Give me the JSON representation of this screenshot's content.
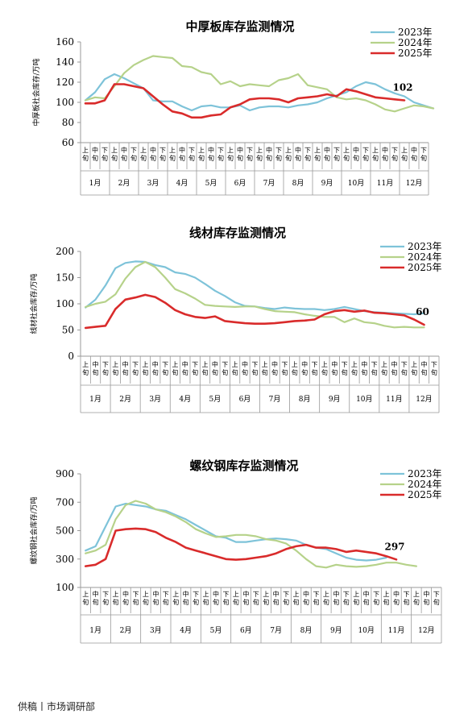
{
  "footer": "供稿丨市场调研部",
  "colors": {
    "s2023": "#7ec3d9",
    "s2024": "#b6d28a",
    "s2025": "#d92b2b",
    "axis": "#999999"
  },
  "chart_data": [
    {
      "type": "line",
      "title": "中厚板库存监测情况",
      "ylabel": "中厚板社会库存/万吨",
      "ylim": [
        60,
        160
      ],
      "yticks": [
        "160",
        "140",
        "120",
        "100",
        "80",
        "60"
      ],
      "sub_labels": [
        "上旬",
        "中旬",
        "下旬"
      ],
      "months": [
        "1月",
        "2月",
        "3月",
        "4月",
        "5月",
        "6月",
        "7月",
        "8月",
        "9月",
        "10月",
        "11月",
        "12月"
      ],
      "legend": [
        "2023年",
        "2024年",
        "2025年"
      ],
      "end_label": "102",
      "series": [
        {
          "name": "2023年",
          "values": [
            102,
            110,
            123,
            128,
            124,
            119,
            114,
            102,
            101,
            101,
            96,
            92,
            96,
            97,
            95,
            95,
            97,
            92,
            95,
            96,
            96,
            95,
            97,
            98,
            100,
            104,
            107,
            110,
            116,
            120,
            118,
            113,
            109,
            106,
            100,
            97,
            94
          ]
        },
        {
          "name": "2024年",
          "values": [
            102,
            105,
            104,
            116,
            129,
            137,
            142,
            146,
            145,
            144,
            136,
            135,
            130,
            128,
            118,
            121,
            116,
            118,
            117,
            116,
            122,
            124,
            128,
            117,
            115,
            113,
            105,
            103,
            104,
            102,
            98,
            93,
            91,
            94,
            97,
            96,
            94
          ]
        },
        {
          "name": "2025年",
          "values": [
            99,
            99,
            102,
            118,
            118,
            116,
            114,
            106,
            98,
            91,
            89,
            85,
            85,
            87,
            88,
            95,
            98,
            103,
            104,
            104,
            103,
            100,
            104,
            105,
            106,
            108,
            106,
            113,
            111,
            108,
            105,
            104,
            103,
            102
          ]
        }
      ]
    },
    {
      "type": "line",
      "title": "线材库存监测情况",
      "ylabel": "线材社会库存/万吨",
      "ylim": [
        0,
        200
      ],
      "yticks": [
        "200",
        "150",
        "100",
        "50",
        "0"
      ],
      "sub_labels": [
        "上旬",
        "中旬",
        "下旬"
      ],
      "months": [
        "1月",
        "2月",
        "3月",
        "4月",
        "5月",
        "6月",
        "7月",
        "8月",
        "9月",
        "10月",
        "11月",
        "12月"
      ],
      "legend": [
        "2023年",
        "2024年",
        "2025年"
      ],
      "end_label": "60",
      "series": [
        {
          "name": "2023年",
          "values": [
            93,
            108,
            135,
            168,
            178,
            181,
            180,
            174,
            170,
            160,
            157,
            150,
            138,
            125,
            115,
            103,
            96,
            95,
            92,
            90,
            93,
            91,
            90,
            90,
            88,
            90,
            94,
            90,
            86,
            84,
            83,
            82,
            81,
            80,
            82
          ]
        },
        {
          "name": "2024年",
          "values": [
            94,
            100,
            104,
            118,
            148,
            170,
            180,
            170,
            150,
            128,
            120,
            110,
            98,
            96,
            95,
            94,
            95,
            95,
            90,
            86,
            85,
            84,
            80,
            77,
            75,
            75,
            65,
            72,
            65,
            63,
            58,
            55,
            56,
            55,
            55
          ]
        },
        {
          "name": "2025年",
          "values": [
            54,
            56,
            58,
            90,
            108,
            112,
            117,
            113,
            102,
            88,
            80,
            75,
            73,
            76,
            67,
            65,
            63,
            62,
            62,
            63,
            65,
            67,
            68,
            70,
            80,
            86,
            88,
            85,
            87,
            83,
            82,
            80,
            78,
            70,
            60
          ]
        }
      ]
    },
    {
      "type": "line",
      "title": "螺纹钢库存监测情况",
      "ylabel": "螺纹钢社会库存/万吨",
      "ylim": [
        100,
        900
      ],
      "yticks": [
        "900",
        "700",
        "500",
        "300",
        "100"
      ],
      "sub_labels": [
        "上旬",
        "中旬",
        "下旬"
      ],
      "months": [
        "1月",
        "2月",
        "3月",
        "4月",
        "5月",
        "6月",
        "7月",
        "8月",
        "9月",
        "10月",
        "11月",
        "12月"
      ],
      "legend": [
        "2023年",
        "2024年",
        "2025年"
      ],
      "end_label": "297",
      "series": [
        {
          "name": "2023年",
          "values": [
            360,
            390,
            530,
            670,
            690,
            680,
            670,
            650,
            640,
            610,
            580,
            540,
            500,
            460,
            450,
            420,
            420,
            430,
            440,
            445,
            440,
            430,
            400,
            380,
            370,
            340,
            310,
            295,
            290,
            295,
            310
          ]
        },
        {
          "name": "2024年",
          "values": [
            340,
            360,
            400,
            580,
            680,
            710,
            690,
            650,
            630,
            600,
            560,
            510,
            480,
            455,
            460,
            470,
            470,
            460,
            440,
            430,
            410,
            360,
            300,
            250,
            240,
            260,
            250,
            245,
            250,
            260,
            275,
            275,
            260,
            250
          ]
        },
        {
          "name": "2025年",
          "values": [
            250,
            260,
            300,
            500,
            510,
            515,
            510,
            490,
            450,
            420,
            380,
            360,
            340,
            320,
            300,
            295,
            300,
            310,
            320,
            340,
            370,
            390,
            400,
            380,
            380,
            370,
            350,
            360,
            350,
            340,
            320,
            297
          ]
        }
      ]
    }
  ]
}
